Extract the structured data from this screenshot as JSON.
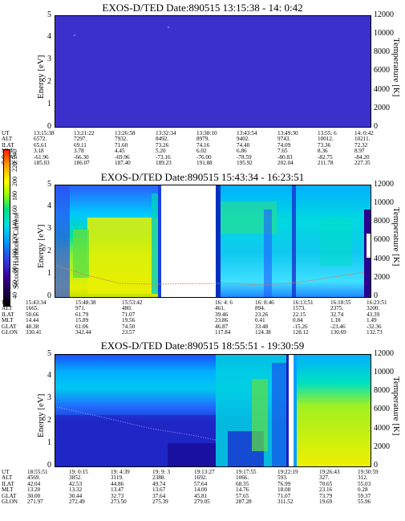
{
  "panels": [
    {
      "title": "EXOS-D/TED    Date:890515    13:15:38 - 14: 0:42",
      "ylabel": "Energy [eV]",
      "y2label": "Temperature [K]",
      "yticks": [
        "0",
        "1",
        "2",
        "3",
        "4",
        "5"
      ],
      "y2ticks": [
        "0",
        "2000",
        "4000",
        "6000",
        "8000",
        "10000",
        "12000"
      ],
      "rows": [
        [
          "UT",
          "13:15:38",
          "13:21:22",
          "13:26:58",
          "13:32:34",
          "13:38:10",
          "13:43:54",
          "13:49:30",
          "13:55: 6",
          "14: 0:42"
        ],
        [
          "ALT",
          "6572.",
          "7297.",
          "7932.",
          "8492.",
          "8979.",
          "9402.",
          "9743.",
          "10012.",
          "10211."
        ],
        [
          "ILAT",
          "65.61",
          "69.11",
          "71.60",
          "73.26",
          "74.16",
          "74.40",
          "74.09",
          "73.36",
          "72.32"
        ],
        [
          "MLT",
          "3.18",
          "3.78",
          "4.45",
          "5.20",
          "6.02",
          "6.86",
          "7.65",
          "8.36",
          "8.97"
        ],
        [
          "GLAT",
          "-61.96",
          "-66.30",
          "-69.96",
          "-73.16",
          "-76.00",
          "-78.59",
          "-80.83",
          "-82.75",
          "-84.20"
        ],
        [
          "GLON",
          "185.03",
          "186.07",
          "187.40",
          "189.23",
          "191.88",
          "195.92",
          "202.04",
          "211.78",
          "227.35"
        ]
      ]
    },
    {
      "title": "EXOS-D/TED    Date:890515    15:43:34 - 16:23:51",
      "ylabel": "Energy [eV]",
      "y2label": "Temperature [K]",
      "yticks": [
        "0",
        "1",
        "2",
        "3",
        "4",
        "5"
      ],
      "y2ticks": [
        "0",
        "2000",
        "4000",
        "6000",
        "8000",
        "10000",
        "12000"
      ],
      "colorbar": {
        "label": "Second Harmonic Current",
        "ticks": [
          "40",
          "60",
          "80",
          "100",
          "120",
          "140",
          "160",
          "180",
          "200",
          "220",
          "240",
          "250"
        ]
      },
      "rows": [
        [
          "UT",
          "15:43:34",
          "15:48:38",
          "15:53:42",
          "",
          "16: 4: 6",
          "16: 8:46",
          "16:13:51",
          "16:18:55",
          "16:23:51"
        ],
        [
          "ALT",
          "1665.",
          "971.",
          "480.",
          "",
          "461.",
          "894.",
          "1573.",
          "2375.",
          "3200."
        ],
        [
          "ILAT",
          "50.66",
          "61.79",
          "71.07",
          "",
          "39.46",
          "23.26",
          "22.15",
          "32.74",
          "43.39"
        ],
        [
          "MLT",
          "14.44",
          "15.89",
          "19.56",
          "",
          "23.86",
          "0.41",
          "0.84",
          "1.18",
          "1.49"
        ],
        [
          "GLAT",
          "48.38",
          "61.06",
          "74.50",
          "",
          "46.87",
          "33.48",
          "-15.26",
          "-23.46",
          "-32.36"
        ],
        [
          "GLON",
          "330.41",
          "342.44",
          "23.57",
          "",
          "117.84",
          "124.38",
          "128.12",
          "130.69",
          "132.73"
        ]
      ]
    },
    {
      "title": "EXOS-D/TED    Date:890515    18:55:51 - 19:30:59",
      "ylabel": "Energy [eV]",
      "y2label": "Temperature [K]",
      "yticks": [
        "0",
        "1",
        "2",
        "3",
        "4",
        "5"
      ],
      "y2ticks": [
        "0",
        "2000",
        "4000",
        "6000",
        "8000",
        "10000",
        "12000"
      ],
      "rows": [
        [
          "UT",
          "18:55:51",
          "19: 0:15",
          "19: 4:39",
          "19: 9: 3",
          "19:13:27",
          "19:17:55",
          "19:22:19",
          "19:26:43",
          "19:30:59"
        ],
        [
          "ALT",
          "4569.",
          "3852.",
          "3119.",
          "2388.",
          "1692.",
          "1066.",
          "593.",
          "327.",
          "312."
        ],
        [
          "ILAT",
          "42.04",
          "42.53",
          "44.86",
          "49.74",
          "57.64",
          "68.35",
          "76.99",
          "70.65",
          "55.03"
        ],
        [
          "MLT",
          "13.20",
          "13.32",
          "13.47",
          "13.67",
          "14.00",
          "14.76",
          "18.08",
          "23.16",
          "0.28"
        ],
        [
          "GLAT",
          "30.00",
          "30.44",
          "32.73",
          "37.64",
          "45.81",
          "57.65",
          "71.07",
          "73.79",
          "59.37"
        ],
        [
          "GLON",
          "271.97",
          "272.49",
          "273.50",
          "275.39",
          "279.05",
          "287.28",
          "311.52",
          "19.69",
          "55.96"
        ]
      ]
    }
  ]
}
